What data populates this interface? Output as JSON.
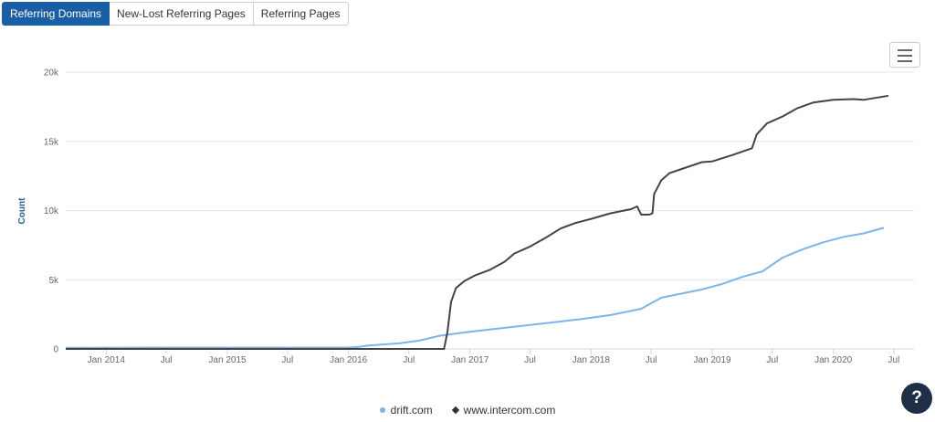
{
  "tabs": [
    {
      "label": "Referring Domains",
      "active": true
    },
    {
      "label": "New-Lost Referring Pages",
      "active": false
    },
    {
      "label": "Referring Pages",
      "active": false
    }
  ],
  "menu_icon": "hamburger-menu-icon",
  "help": {
    "label": "?"
  },
  "colors": {
    "drift": "#7cb5ec",
    "intercom": "#444444",
    "active_tab": "#1a5fa6"
  },
  "chart_data": {
    "type": "line",
    "ylabel": "Count",
    "xlabel": "",
    "ylim": [
      0,
      20000
    ],
    "y_ticks": [
      {
        "value": 0,
        "label": "0"
      },
      {
        "value": 5000,
        "label": "5k"
      },
      {
        "value": 10000,
        "label": "10k"
      },
      {
        "value": 15000,
        "label": "15k"
      },
      {
        "value": 20000,
        "label": "20k"
      }
    ],
    "xlim": [
      "2013-09-01",
      "2020-08-31"
    ],
    "x_ticks": [
      {
        "date": "2014-01-01",
        "label": "Jan 2014"
      },
      {
        "date": "2014-07-01",
        "label": "Jul"
      },
      {
        "date": "2015-01-01",
        "label": "Jan 2015"
      },
      {
        "date": "2015-07-01",
        "label": "Jul"
      },
      {
        "date": "2016-01-01",
        "label": "Jan 2016"
      },
      {
        "date": "2016-07-01",
        "label": "Jul"
      },
      {
        "date": "2017-01-01",
        "label": "Jan 2017"
      },
      {
        "date": "2017-07-01",
        "label": "Jul"
      },
      {
        "date": "2018-01-01",
        "label": "Jan 2018"
      },
      {
        "date": "2018-07-01",
        "label": "Jul"
      },
      {
        "date": "2019-01-01",
        "label": "Jan 2019"
      },
      {
        "date": "2019-07-01",
        "label": "Jul"
      },
      {
        "date": "2020-01-01",
        "label": "Jan 2020"
      },
      {
        "date": "2020-07-01",
        "label": "Jul"
      }
    ],
    "legend_position": "bottom-center",
    "series": [
      {
        "name": "drift.com",
        "color": "#7cb5ec",
        "marker": "circle",
        "points": [
          [
            "2013-09-01",
            80
          ],
          [
            "2014-06-01",
            100
          ],
          [
            "2015-06-01",
            100
          ],
          [
            "2016-01-01",
            100
          ],
          [
            "2016-02-01",
            150
          ],
          [
            "2016-03-01",
            250
          ],
          [
            "2016-06-01",
            400
          ],
          [
            "2016-08-01",
            600
          ],
          [
            "2016-10-01",
            950
          ],
          [
            "2016-12-01",
            1150
          ],
          [
            "2017-03-01",
            1400
          ],
          [
            "2017-06-01",
            1650
          ],
          [
            "2017-09-01",
            1900
          ],
          [
            "2017-12-01",
            2150
          ],
          [
            "2018-03-01",
            2450
          ],
          [
            "2018-06-01",
            2900
          ],
          [
            "2018-07-01",
            3300
          ],
          [
            "2018-08-01",
            3700
          ],
          [
            "2018-10-01",
            4000
          ],
          [
            "2018-12-01",
            4300
          ],
          [
            "2019-02-01",
            4700
          ],
          [
            "2019-04-01",
            5200
          ],
          [
            "2019-06-01",
            5600
          ],
          [
            "2019-08-01",
            6600
          ],
          [
            "2019-10-01",
            7200
          ],
          [
            "2019-12-01",
            7700
          ],
          [
            "2020-02-01",
            8100
          ],
          [
            "2020-04-01",
            8350
          ],
          [
            "2020-06-01",
            8750
          ]
        ]
      },
      {
        "name": "www.intercom.com",
        "color": "#444444",
        "marker": "diamond",
        "points": [
          [
            "2013-09-01",
            0
          ],
          [
            "2016-10-15",
            0
          ],
          [
            "2016-10-25",
            1200
          ],
          [
            "2016-11-05",
            3400
          ],
          [
            "2016-11-20",
            4400
          ],
          [
            "2016-12-15",
            4900
          ],
          [
            "2017-01-15",
            5300
          ],
          [
            "2017-03-01",
            5700
          ],
          [
            "2017-04-15",
            6300
          ],
          [
            "2017-05-15",
            6900
          ],
          [
            "2017-07-01",
            7400
          ],
          [
            "2017-08-15",
            8000
          ],
          [
            "2017-10-01",
            8700
          ],
          [
            "2017-11-15",
            9100
          ],
          [
            "2018-01-01",
            9400
          ],
          [
            "2018-03-01",
            9800
          ],
          [
            "2018-05-01",
            10100
          ],
          [
            "2018-05-20",
            10300
          ],
          [
            "2018-06-01",
            9700
          ],
          [
            "2018-06-25",
            9700
          ],
          [
            "2018-07-05",
            9800
          ],
          [
            "2018-07-10",
            11200
          ],
          [
            "2018-08-01",
            12200
          ],
          [
            "2018-08-25",
            12700
          ],
          [
            "2018-10-01",
            13000
          ],
          [
            "2018-12-01",
            13500
          ],
          [
            "2019-01-01",
            13550
          ],
          [
            "2019-03-01",
            14000
          ],
          [
            "2019-05-01",
            14500
          ],
          [
            "2019-05-15",
            15500
          ],
          [
            "2019-06-15",
            16300
          ],
          [
            "2019-08-01",
            16800
          ],
          [
            "2019-09-15",
            17400
          ],
          [
            "2019-11-01",
            17800
          ],
          [
            "2020-01-01",
            18000
          ],
          [
            "2020-03-01",
            18050
          ],
          [
            "2020-04-01",
            18000
          ],
          [
            "2020-06-15",
            18300
          ]
        ]
      }
    ]
  }
}
